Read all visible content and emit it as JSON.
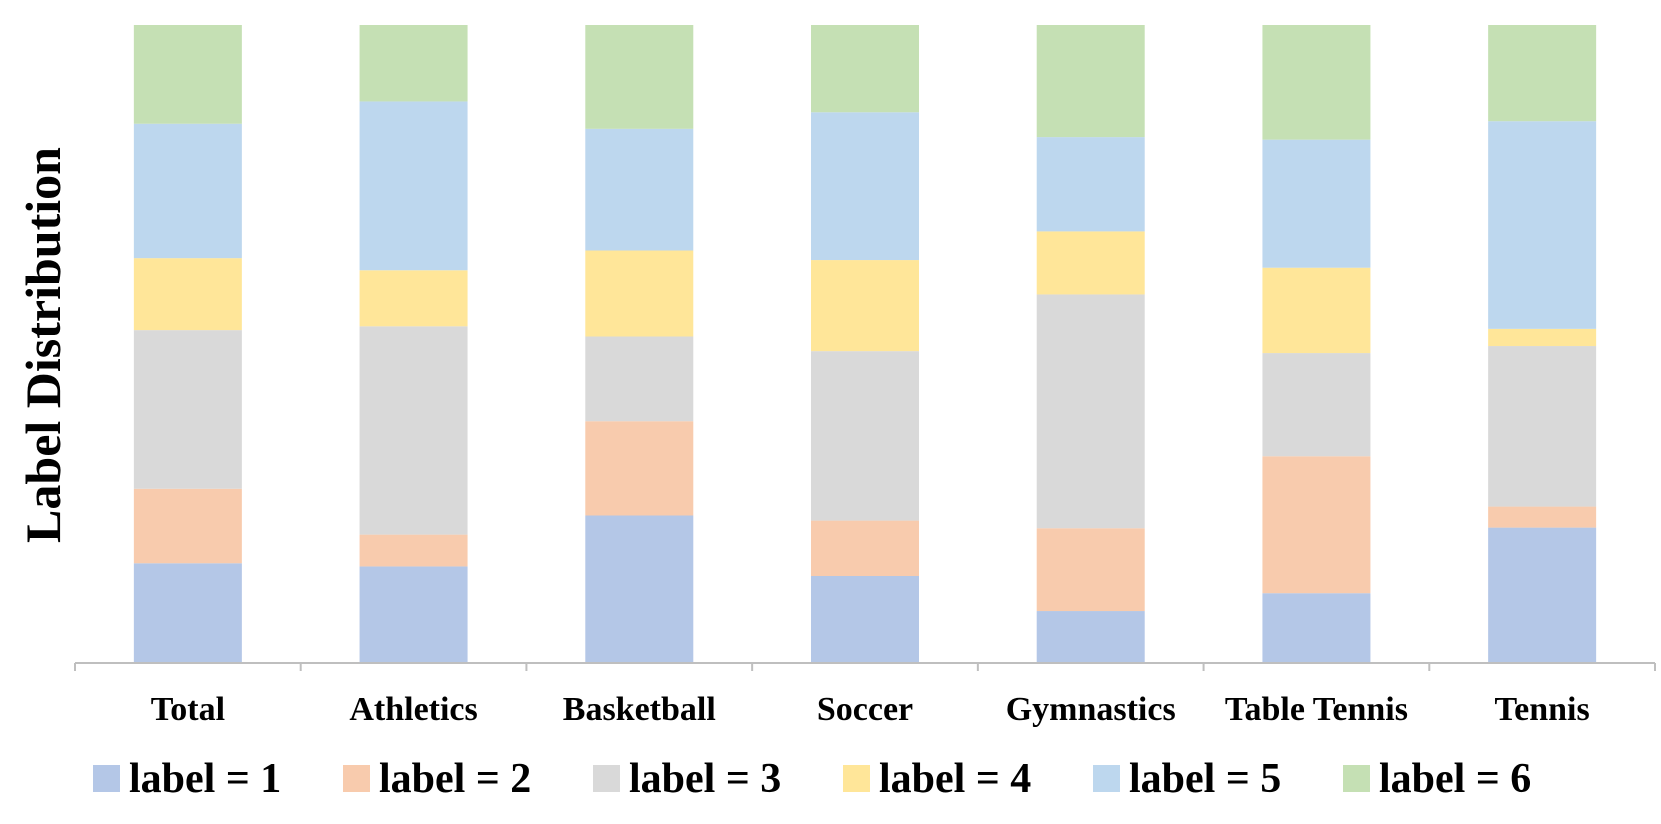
{
  "chart_data": {
    "type": "bar",
    "stacked": true,
    "normalized": true,
    "title": "",
    "xlabel": "",
    "ylabel": "Label Distribution",
    "ylim": [
      0,
      1
    ],
    "grid": false,
    "legend_position": "bottom",
    "categories": [
      "Total",
      "Athletics",
      "Basketball",
      "Soccer",
      "Gymnastics",
      "Table Tennis",
      "Tennis"
    ],
    "series": [
      {
        "name": "label = 1",
        "color": "#b4c7e7",
        "values": [
          0.155,
          0.15,
          0.23,
          0.135,
          0.08,
          0.108,
          0.211
        ]
      },
      {
        "name": "label = 2",
        "color": "#f8cbad",
        "values": [
          0.117,
          0.05,
          0.148,
          0.087,
          0.13,
          0.215,
          0.033
        ]
      },
      {
        "name": "label = 3",
        "color": "#d9d9d9",
        "values": [
          0.249,
          0.327,
          0.133,
          0.266,
          0.367,
          0.162,
          0.252
        ]
      },
      {
        "name": "label = 4",
        "color": "#ffe699",
        "values": [
          0.113,
          0.088,
          0.135,
          0.143,
          0.099,
          0.134,
          0.027
        ]
      },
      {
        "name": "label = 5",
        "color": "#bdd7ee",
        "values": [
          0.211,
          0.265,
          0.191,
          0.232,
          0.148,
          0.201,
          0.326
        ]
      },
      {
        "name": "label = 6",
        "color": "#c5e0b4",
        "values": [
          0.155,
          0.12,
          0.163,
          0.137,
          0.176,
          0.18,
          0.151
        ]
      }
    ]
  }
}
